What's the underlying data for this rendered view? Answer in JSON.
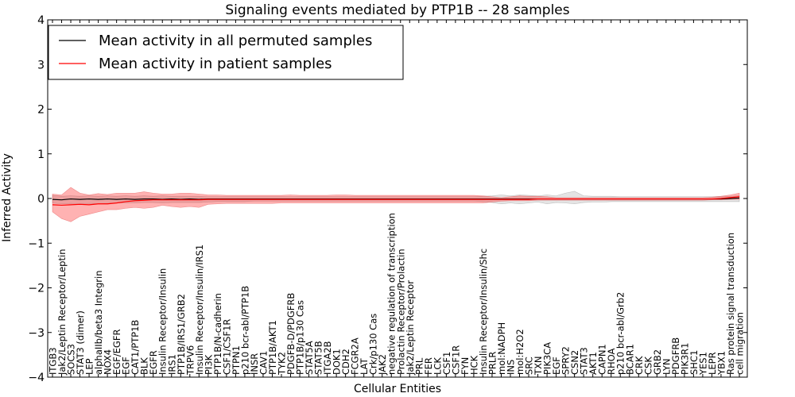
{
  "chart_data": {
    "type": "line",
    "title": "Signaling events mediated by PTP1B -- 28 samples",
    "xlabel": "Cellular Entities",
    "ylabel": "Inferred Activity",
    "ylim": [
      -4,
      4
    ],
    "yticks": [
      -4,
      -3,
      -2,
      -1,
      0,
      1,
      2,
      3,
      4
    ],
    "grid": false,
    "legend_position": "top-left",
    "categories": [
      "ITGB3",
      "Jak2/Leptin Receptor/Leptin",
      "SOCS3",
      "STAT3 (dimer)",
      "LEP",
      "alphaIIb/beta3 Integrin",
      "NOX4",
      "EGF/EGFR",
      "EGF",
      "CAT1/PTP1B",
      "BLK",
      "EGFR",
      "Insulin Receptor/Insulin",
      "IRS1",
      "PTP1B/IRS1/GRB2",
      "TRPV6",
      "Insulin Receptor/Insulin/IRS1",
      "PI3K",
      "PTP1B/N-cadherin",
      "CSF1/CSF1R",
      "PTPN1",
      "p210 bcr-abl/PTP1B",
      "INSR",
      "CAV1",
      "PTP1B/AKT1",
      "TYK2",
      "PDGFB-D/PDGFRB",
      "PTP1B/p130 Cas",
      "STAT5A",
      "STAT5B",
      "ITGA2B",
      "DOK1",
      "CDH2",
      "FCGR2A",
      "LAT",
      "Crk/p130 Cas",
      "JAK2",
      "negative regulation of transcription",
      "Prolactin Receptor/Prolactin",
      "Jak2/Leptin Receptor",
      "PRL",
      "FER",
      "LCK",
      "CSF1",
      "CSF1R",
      "FYN",
      "HCK",
      "Insulin Receptor/Insulin/Shc",
      "PRLR",
      "mol:NADPH",
      "INS",
      "mol:H2O2",
      "SRC",
      "TXN",
      "PIK3CA",
      "EGF",
      "SPRY2",
      "CSN2",
      "STAT3",
      "AKT1",
      "CAPN1",
      "RHOA",
      "p210 bcr-abl/Grb2",
      "BCAR1",
      "CRK",
      "CSK",
      "GRB2",
      "LYN",
      "PDGFRB",
      "PIK3R1",
      "SHC1",
      "YES1",
      "LEPR",
      "YBX1",
      "Ras protein signal transduction",
      "cell migration"
    ],
    "series": [
      {
        "name": "Mean activity in all permuted samples",
        "color": "#000000",
        "values": [
          -0.02,
          -0.03,
          -0.01,
          -0.02,
          -0.01,
          -0.02,
          -0.01,
          -0.02,
          -0.01,
          -0.02,
          -0.01,
          -0.01,
          -0.02,
          -0.01,
          -0.02,
          -0.01,
          -0.02,
          -0.01,
          -0.01,
          -0.01,
          -0.01,
          -0.01,
          -0.01,
          -0.01,
          -0.01,
          -0.01,
          -0.01,
          -0.01,
          -0.01,
          -0.01,
          -0.01,
          -0.01,
          -0.01,
          -0.01,
          -0.01,
          -0.01,
          -0.01,
          -0.01,
          -0.01,
          -0.01,
          -0.01,
          -0.01,
          -0.01,
          -0.01,
          -0.01,
          -0.01,
          -0.01,
          -0.01,
          -0.01,
          -0.01,
          -0.01,
          -0.01,
          -0.01,
          -0.01,
          -0.01,
          -0.01,
          -0.01,
          -0.01,
          -0.01,
          -0.01,
          -0.01,
          -0.01,
          -0.01,
          -0.01,
          -0.01,
          -0.01,
          -0.01,
          -0.01,
          -0.01,
          -0.01,
          -0.01,
          -0.01,
          -0.01,
          -0.01,
          0.0,
          0.01
        ],
        "band_upper": [
          0.07,
          0.05,
          0.06,
          0.05,
          0.06,
          0.05,
          0.06,
          0.05,
          0.06,
          0.05,
          0.06,
          0.05,
          0.06,
          0.05,
          0.05,
          0.05,
          0.05,
          0.04,
          0.04,
          0.04,
          0.04,
          0.04,
          0.04,
          0.04,
          0.04,
          0.04,
          0.04,
          0.04,
          0.04,
          0.04,
          0.04,
          0.04,
          0.04,
          0.04,
          0.04,
          0.04,
          0.04,
          0.04,
          0.04,
          0.04,
          0.04,
          0.04,
          0.04,
          0.04,
          0.04,
          0.04,
          0.04,
          0.05,
          0.06,
          0.08,
          0.06,
          0.08,
          0.07,
          0.06,
          0.08,
          0.06,
          0.12,
          0.16,
          0.06,
          0.05,
          0.05,
          0.05,
          0.04,
          0.04,
          0.04,
          0.04,
          0.04,
          0.04,
          0.04,
          0.04,
          0.04,
          0.04,
          0.04,
          0.05,
          0.05,
          0.06
        ],
        "band_lower": [
          -0.1,
          -0.12,
          -0.11,
          -0.12,
          -0.11,
          -0.12,
          -0.11,
          -0.1,
          -0.1,
          -0.1,
          -0.09,
          -0.09,
          -0.1,
          -0.09,
          -0.09,
          -0.09,
          -0.09,
          -0.08,
          -0.07,
          -0.07,
          -0.07,
          -0.07,
          -0.06,
          -0.06,
          -0.06,
          -0.06,
          -0.06,
          -0.06,
          -0.06,
          -0.06,
          -0.06,
          -0.06,
          -0.06,
          -0.06,
          -0.06,
          -0.06,
          -0.06,
          -0.06,
          -0.06,
          -0.06,
          -0.06,
          -0.06,
          -0.06,
          -0.06,
          -0.06,
          -0.06,
          -0.06,
          -0.07,
          -0.09,
          -0.12,
          -0.1,
          -0.12,
          -0.1,
          -0.08,
          -0.12,
          -0.09,
          -0.1,
          -0.12,
          -0.09,
          -0.08,
          -0.08,
          -0.07,
          -0.07,
          -0.07,
          -0.07,
          -0.07,
          -0.07,
          -0.07,
          -0.07,
          -0.07,
          -0.07,
          -0.07,
          -0.07,
          -0.07,
          -0.07,
          -0.07
        ]
      },
      {
        "name": "Mean activity in patient samples",
        "color": "#ff0000",
        "values": [
          -0.14,
          -0.15,
          -0.14,
          -0.13,
          -0.14,
          -0.12,
          -0.12,
          -0.1,
          -0.07,
          -0.05,
          -0.04,
          -0.03,
          -0.03,
          -0.03,
          -0.03,
          -0.03,
          -0.03,
          -0.02,
          -0.02,
          -0.02,
          -0.02,
          -0.02,
          -0.02,
          -0.02,
          -0.02,
          -0.02,
          -0.02,
          -0.02,
          -0.02,
          -0.02,
          -0.02,
          -0.02,
          -0.02,
          -0.02,
          -0.02,
          -0.02,
          -0.02,
          -0.02,
          -0.02,
          -0.02,
          -0.02,
          -0.02,
          -0.02,
          -0.02,
          -0.02,
          -0.02,
          -0.02,
          -0.02,
          -0.02,
          -0.02,
          -0.02,
          -0.02,
          -0.02,
          -0.01,
          -0.01,
          -0.01,
          -0.01,
          -0.01,
          -0.01,
          -0.01,
          -0.01,
          -0.01,
          -0.01,
          -0.01,
          -0.01,
          -0.01,
          -0.01,
          -0.01,
          -0.01,
          -0.01,
          -0.01,
          -0.01,
          -0.01,
          0.0,
          0.02,
          0.04
        ],
        "band_upper": [
          0.1,
          0.08,
          0.25,
          0.12,
          0.08,
          0.11,
          0.09,
          0.12,
          0.12,
          0.12,
          0.15,
          0.12,
          0.1,
          0.1,
          0.12,
          0.12,
          0.1,
          0.08,
          0.08,
          0.07,
          0.07,
          0.07,
          0.07,
          0.07,
          0.07,
          0.07,
          0.08,
          0.07,
          0.07,
          0.07,
          0.07,
          0.08,
          0.08,
          0.07,
          0.07,
          0.07,
          0.07,
          0.07,
          0.07,
          0.07,
          0.07,
          0.07,
          0.07,
          0.07,
          0.07,
          0.07,
          0.07,
          0.06,
          0.04,
          0.02,
          0.04,
          0.06,
          0.05,
          0.05,
          0.04,
          0.02,
          0.02,
          0.02,
          0.02,
          0.02,
          0.02,
          0.02,
          0.02,
          0.02,
          0.02,
          0.02,
          0.02,
          0.02,
          0.02,
          0.02,
          0.02,
          0.02,
          0.03,
          0.05,
          0.08,
          0.12
        ],
        "band_lower": [
          -0.3,
          -0.45,
          -0.52,
          -0.4,
          -0.35,
          -0.3,
          -0.25,
          -0.25,
          -0.22,
          -0.2,
          -0.22,
          -0.2,
          -0.15,
          -0.18,
          -0.2,
          -0.18,
          -0.2,
          -0.13,
          -0.12,
          -0.11,
          -0.11,
          -0.11,
          -0.11,
          -0.11,
          -0.11,
          -0.1,
          -0.1,
          -0.1,
          -0.1,
          -0.1,
          -0.1,
          -0.1,
          -0.1,
          -0.1,
          -0.1,
          -0.1,
          -0.1,
          -0.1,
          -0.1,
          -0.1,
          -0.1,
          -0.1,
          -0.1,
          -0.1,
          -0.1,
          -0.1,
          -0.1,
          -0.1,
          -0.08,
          -0.06,
          -0.05,
          -0.05,
          -0.05,
          -0.04,
          -0.04,
          -0.04,
          -0.04,
          -0.04,
          -0.04,
          -0.04,
          -0.04,
          -0.04,
          -0.04,
          -0.04,
          -0.04,
          -0.04,
          -0.04,
          -0.04,
          -0.04,
          -0.04,
          -0.04,
          -0.04,
          -0.03,
          -0.03,
          -0.02,
          -0.02
        ]
      }
    ]
  }
}
